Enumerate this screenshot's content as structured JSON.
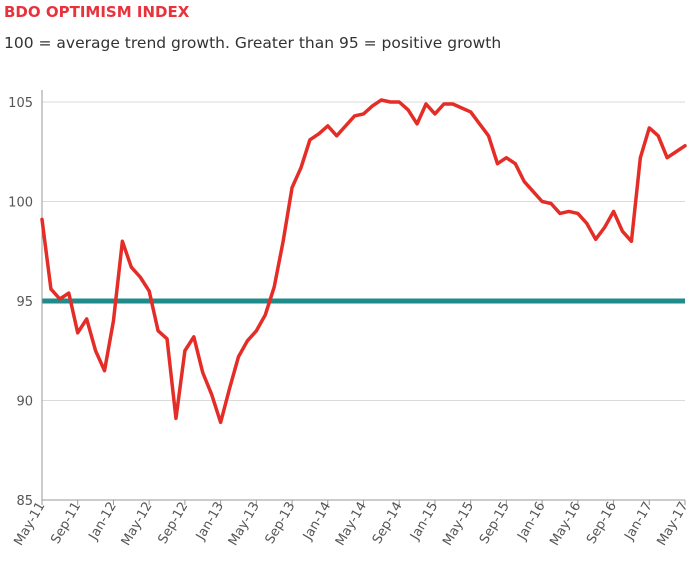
{
  "header": {
    "title": "BDO OPTIMISM INDEX",
    "subtitle": "100 = average trend growth. Greater than 95 = positive growth"
  },
  "colors": {
    "title": "#e8323c",
    "series": "#e52d27",
    "reference": "#1f8b8a",
    "grid": "#dadada",
    "axis": "#9a9a9a"
  },
  "chart_data": {
    "type": "line",
    "ylim": [
      85,
      105
    ],
    "yticks": [
      85,
      90,
      95,
      100,
      105
    ],
    "xlabels": [
      "May-11",
      "Sep-11",
      "Jan-12",
      "May-12",
      "Sep-12",
      "Jan-13",
      "May-13",
      "Sep-13",
      "Jan-14",
      "May-14",
      "Sep-14",
      "Jan-15",
      "May-15",
      "Sep-15",
      "Jan-16",
      "May-16",
      "Sep-16",
      "Jan-17",
      "May-17"
    ],
    "reference_line": 95,
    "grid": true,
    "series": [
      {
        "values": [
          99.1,
          95.6,
          95.1,
          95.4,
          93.4,
          94.1,
          92.5,
          91.5,
          94.0,
          98.0,
          96.7,
          96.2,
          95.5,
          93.5,
          93.1,
          89.1,
          92.5,
          93.2,
          91.4,
          90.3,
          88.9,
          90.6,
          92.2,
          93.0,
          93.5,
          94.3,
          95.7,
          98.0,
          100.7,
          101.7,
          103.1,
          103.4,
          103.8,
          103.3,
          103.8,
          104.3,
          104.4,
          104.8,
          105.1,
          105.0,
          105.0,
          104.6,
          103.9,
          104.9,
          104.4,
          104.9,
          104.9,
          104.7,
          104.5,
          103.9,
          103.3,
          101.9,
          102.2,
          101.9,
          101.0,
          100.5,
          100.0,
          99.9,
          99.4,
          99.5,
          99.4,
          98.9,
          98.1,
          98.7,
          99.5,
          98.5,
          98.0,
          102.2,
          103.7,
          103.3,
          102.2,
          102.5,
          102.8
        ]
      }
    ]
  }
}
